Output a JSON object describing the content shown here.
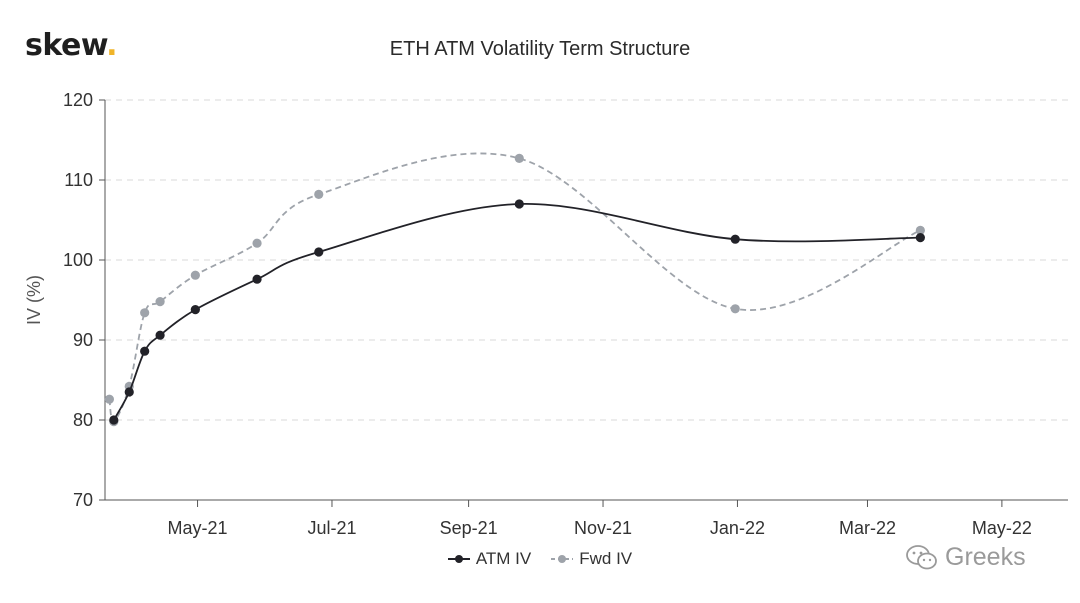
{
  "brand": {
    "name": "skew",
    "dot": "."
  },
  "watermark": {
    "text": "Greeks",
    "icon": "wechat-icon"
  },
  "chart_data": {
    "type": "line",
    "title": "ETH ATM Volatility Term Structure",
    "xlabel": "",
    "ylabel": "IV (%)",
    "ylim": [
      70,
      120
    ],
    "yticks": [
      70,
      80,
      90,
      100,
      110,
      120
    ],
    "xlim": [
      "2021-03-20",
      "2022-05-31"
    ],
    "xticks": [
      {
        "date": "2021-05-01",
        "label": "May-21"
      },
      {
        "date": "2021-07-01",
        "label": "Jul-21"
      },
      {
        "date": "2021-09-01",
        "label": "Sep-21"
      },
      {
        "date": "2021-11-01",
        "label": "Nov-21"
      },
      {
        "date": "2022-01-01",
        "label": "Jan-22"
      },
      {
        "date": "2022-03-01",
        "label": "Mar-22"
      },
      {
        "date": "2022-05-01",
        "label": "May-22"
      }
    ],
    "grid": true,
    "legend_position": "bottom-center",
    "series": [
      {
        "name": "ATM IV",
        "color": "#222228",
        "style": "solid",
        "points": [
          {
            "x": "2021-03-24",
            "y": 80.0
          },
          {
            "x": "2021-03-31",
            "y": 83.5
          },
          {
            "x": "2021-04-07",
            "y": 88.6
          },
          {
            "x": "2021-04-14",
            "y": 90.6
          },
          {
            "x": "2021-04-30",
            "y": 93.8
          },
          {
            "x": "2021-05-28",
            "y": 97.6
          },
          {
            "x": "2021-06-25",
            "y": 101.0
          },
          {
            "x": "2021-09-24",
            "y": 107.0
          },
          {
            "x": "2021-12-31",
            "y": 102.6
          },
          {
            "x": "2022-03-25",
            "y": 102.8
          }
        ]
      },
      {
        "name": "Fwd IV",
        "color": "#9ea3aa",
        "style": "dashed",
        "points": [
          {
            "x": "2021-03-22",
            "y": 82.6
          },
          {
            "x": "2021-03-24",
            "y": 79.8
          },
          {
            "x": "2021-03-31",
            "y": 84.2
          },
          {
            "x": "2021-04-07",
            "y": 93.4
          },
          {
            "x": "2021-04-14",
            "y": 94.8
          },
          {
            "x": "2021-04-30",
            "y": 98.1
          },
          {
            "x": "2021-05-28",
            "y": 102.1
          },
          {
            "x": "2021-06-25",
            "y": 108.2
          },
          {
            "x": "2021-09-24",
            "y": 112.7
          },
          {
            "x": "2021-12-31",
            "y": 93.9
          },
          {
            "x": "2022-03-25",
            "y": 103.7
          }
        ]
      }
    ]
  }
}
